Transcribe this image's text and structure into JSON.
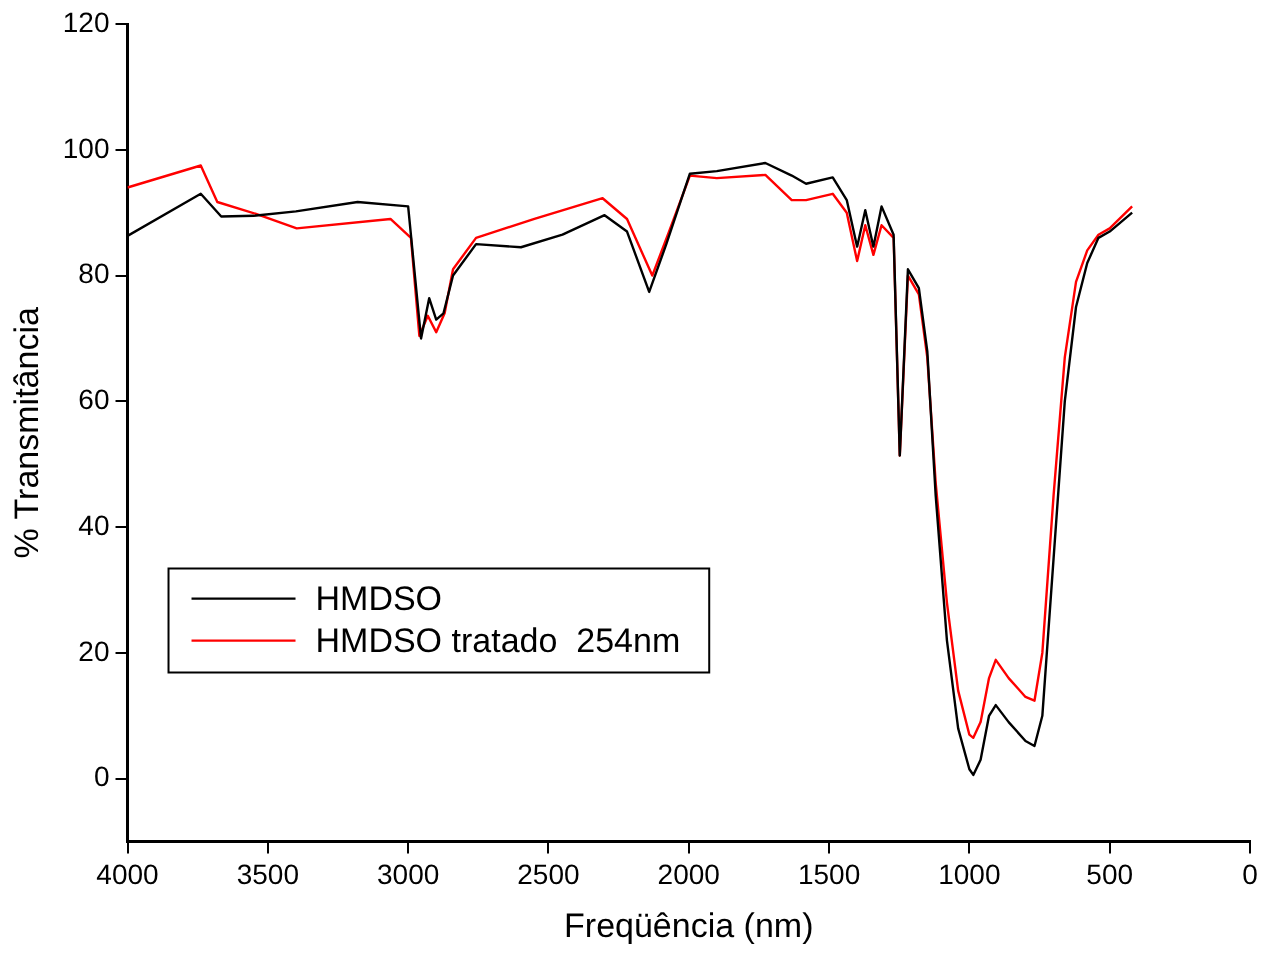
{
  "chart_data": {
    "type": "line",
    "xlabel": "Freqüência (nm)",
    "ylabel": "% Transmitância",
    "xlim": [
      4000,
      0
    ],
    "xticks": [
      4000,
      3500,
      3000,
      2500,
      2000,
      1500,
      1000,
      500,
      0
    ],
    "ylim": [
      -10,
      120
    ],
    "yticks": [
      0,
      20,
      40,
      60,
      80,
      100,
      120
    ],
    "grid": false,
    "legend": "bottom left",
    "marker": "none",
    "line_style": "solid",
    "series": [
      {
        "name": "HMDSO",
        "color": "#000000",
        "x": [
          4000,
          3739,
          3666,
          3550,
          3400,
          3180,
          3000,
          2954,
          2925,
          2900,
          2874,
          2840,
          2758,
          2598,
          2450,
          2300,
          2220,
          2141,
          2080,
          1996,
          1900,
          1727,
          1633,
          1582,
          1487,
          1437,
          1400,
          1371,
          1342,
          1313,
          1270,
          1248,
          1219,
          1180,
          1150,
          1120,
          1080,
          1040,
          1000,
          986,
          960,
          930,
          906,
          860,
          800,
          768,
          740,
          700,
          660,
          620,
          580,
          540,
          500,
          420
        ],
        "values": [
          86.3,
          93,
          89.4,
          89.5,
          90.2,
          91.7,
          91,
          70,
          76.4,
          73,
          74,
          80,
          85,
          84.5,
          86.5,
          89.6,
          87,
          77.4,
          85,
          96.2,
          96.6,
          97.9,
          95.9,
          94.6,
          95.6,
          92,
          84.6,
          90.4,
          84.6,
          91,
          86.5,
          51.4,
          81,
          78,
          68,
          45,
          22,
          8,
          1.5,
          0.6,
          3,
          10,
          11.7,
          9,
          6,
          5.2,
          10,
          35,
          60,
          75,
          82,
          86,
          87,
          90
        ]
      },
      {
        "name": "HMDSO tratado  254nm",
        "color": "#ff0000",
        "x": [
          4000,
          3739,
          3680,
          3542,
          3397,
          3063,
          2990,
          2960,
          2930,
          2900,
          2870,
          2840,
          2758,
          2550,
          2307,
          2220,
          2130,
          2070,
          1996,
          1900,
          1727,
          1633,
          1582,
          1487,
          1437,
          1400,
          1371,
          1342,
          1313,
          1270,
          1248,
          1219,
          1180,
          1150,
          1120,
          1080,
          1040,
          1000,
          986,
          960,
          930,
          906,
          860,
          800,
          768,
          740,
          700,
          660,
          620,
          580,
          540,
          500,
          420
        ],
        "values": [
          94,
          97.5,
          91.7,
          89.8,
          87.5,
          89,
          86,
          70.4,
          73.6,
          71,
          74,
          81,
          86,
          89,
          92.3,
          89,
          80,
          87,
          95.9,
          95.5,
          96,
          92,
          92,
          93,
          90,
          82.3,
          88,
          83.3,
          88,
          86,
          51.4,
          80,
          77,
          67,
          47,
          28,
          14,
          7,
          6.5,
          9,
          16,
          18.9,
          16,
          13,
          12.4,
          20,
          45,
          67,
          79,
          84,
          86.5,
          87.5,
          91
        ]
      }
    ]
  }
}
